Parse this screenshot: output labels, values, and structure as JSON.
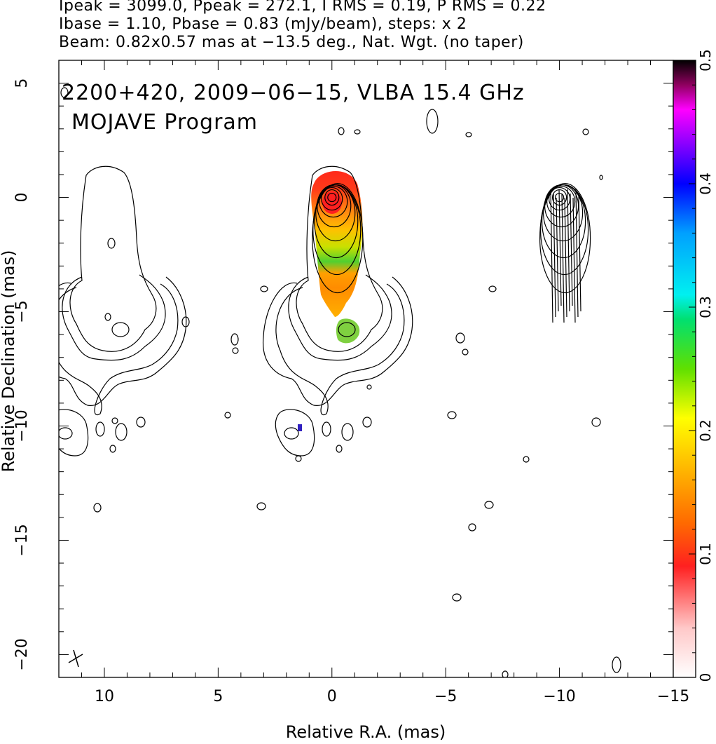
{
  "header": {
    "line1": "Ipeak = 3099.0, Ppeak = 272.1, I RMS = 0.19, P RMS = 0.22",
    "line2": "Ibase = 1.10, Pbase = 0.83 (mJy/beam), steps: x 2",
    "line3": "Beam: 0.82x0.57 mas at −13.5 deg., Nat. Wgt. (no taper)"
  },
  "chart_data": {
    "type": "heatmap",
    "title": "2200+420, 2009−06−15, VLBA 15.4 GHz",
    "subtitle": "MOJAVE Program",
    "xlabel": "Relative R.A. (mas)",
    "ylabel": "Relative Declination (mas)",
    "xlim": [
      12,
      -15
    ],
    "ylim": [
      -21,
      6
    ],
    "x_ticks": [
      10,
      5,
      0,
      -5,
      -10,
      -15
    ],
    "x_tick_labels": [
      "10",
      "5",
      "0",
      "−5",
      "−10",
      "−15"
    ],
    "y_ticks": [
      5,
      0,
      -5,
      -10,
      -15,
      -20
    ],
    "y_tick_labels": [
      "5",
      "0",
      "−5",
      "−10",
      "−15",
      "−20"
    ],
    "colorbar": {
      "min": 0,
      "max": 0.5,
      "ticks": [
        0,
        0.1,
        0.2,
        0.3,
        0.4,
        0.5
      ],
      "tick_labels": [
        "0",
        "0.1",
        "0.2",
        "0.3",
        "0.4",
        "0.5"
      ]
    },
    "panels": [
      {
        "name": "polarization_fraction",
        "center_ra": 0,
        "center_dec": 0
      },
      {
        "name": "evpa_vectors",
        "center_ra": -10,
        "center_dec": 0
      }
    ],
    "grid": false
  }
}
